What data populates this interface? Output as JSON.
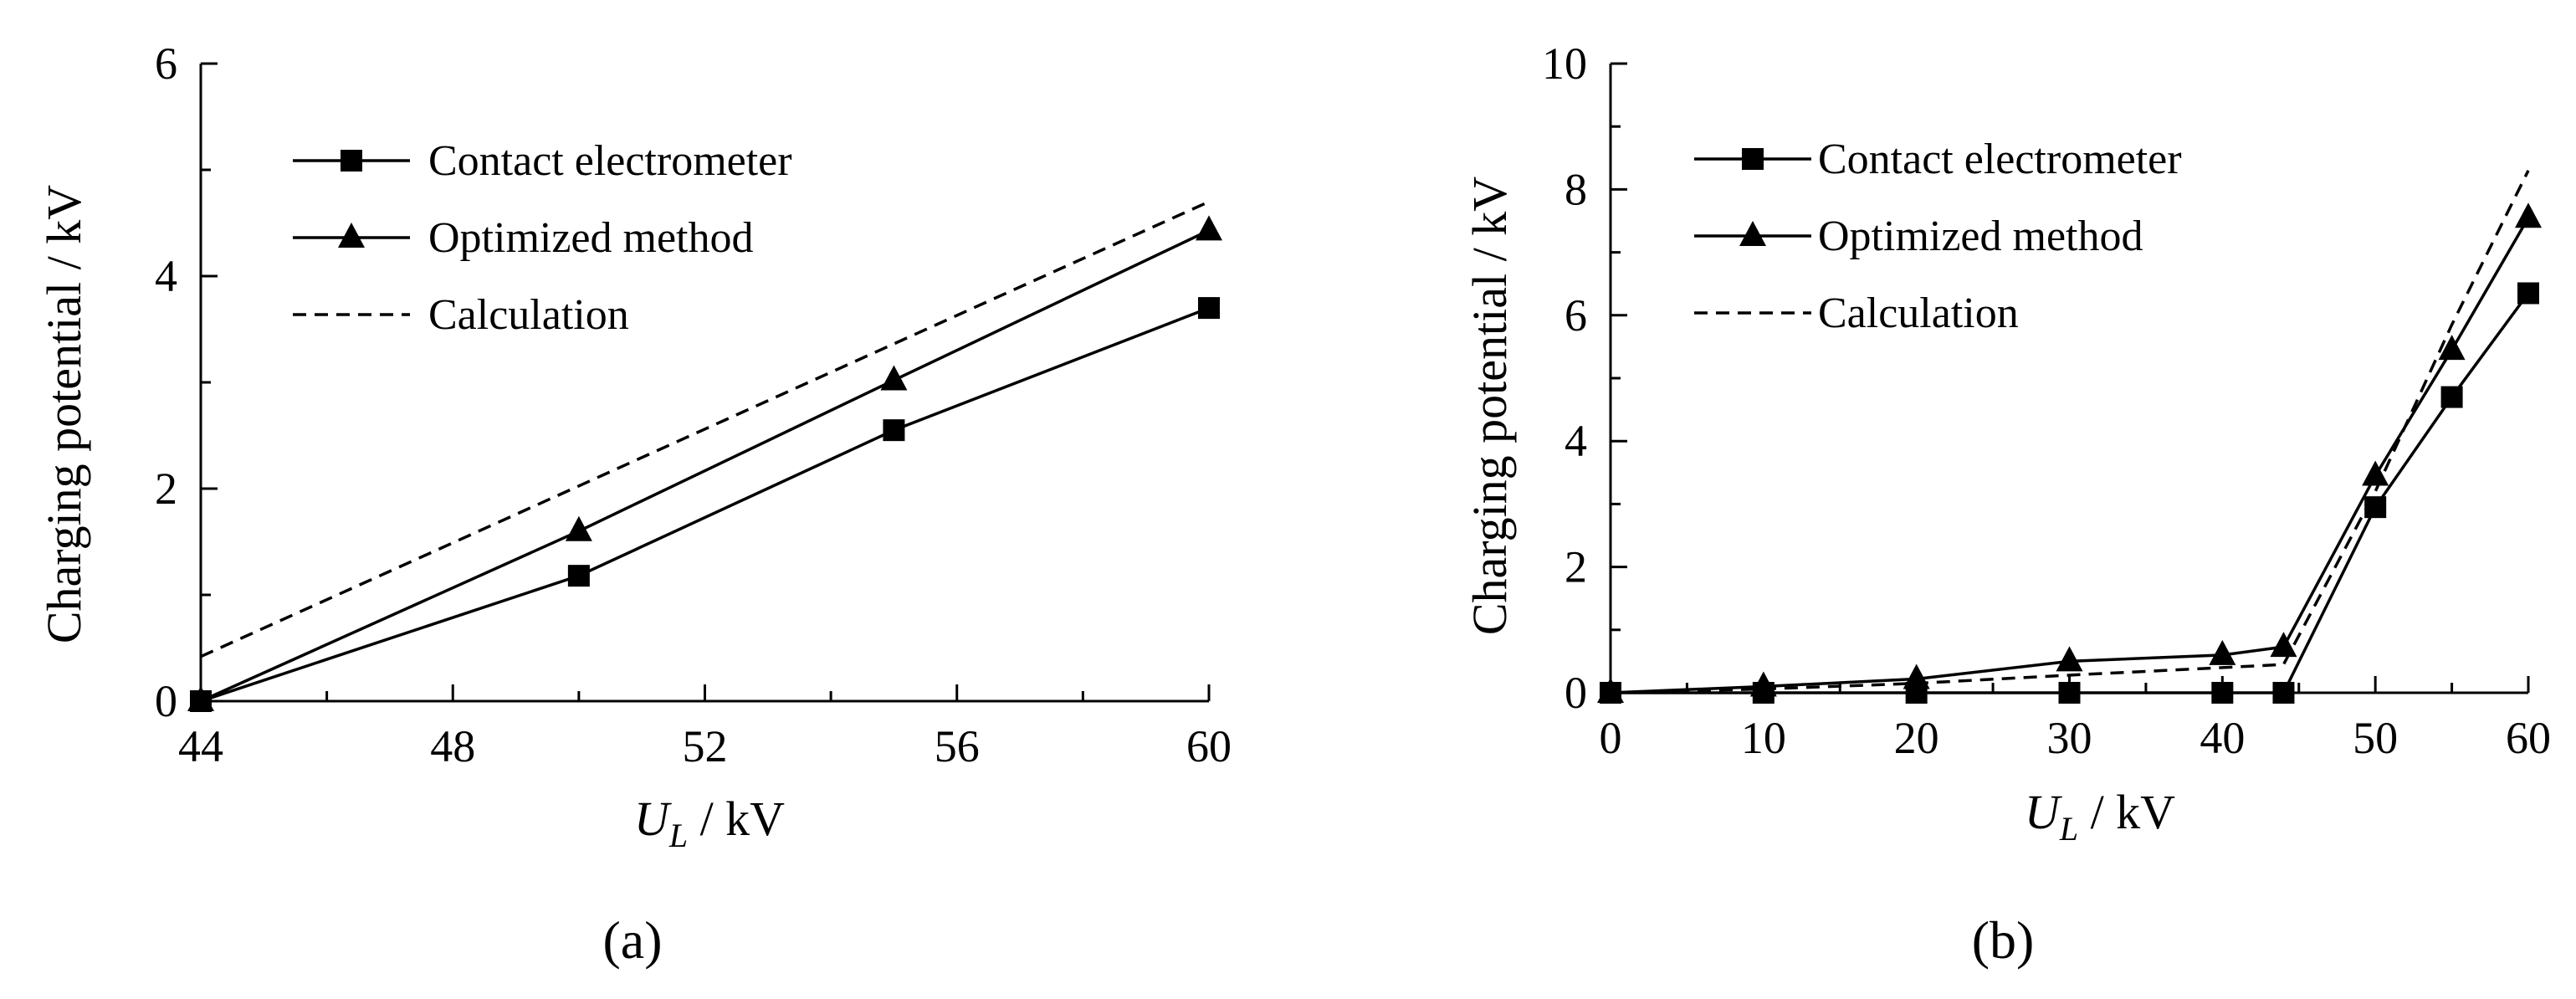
{
  "chart_data": [
    {
      "id": "a",
      "type": "line",
      "panel_label": "(a)",
      "ylabel": "Charging potential / kV",
      "xlabel_main": "U",
      "xlabel_sub": "L",
      "xlabel_unit": " / kV",
      "xlim": [
        44,
        60
      ],
      "ylim": [
        0,
        6
      ],
      "xticks": [
        44,
        48,
        52,
        56,
        60
      ],
      "yticks": [
        0,
        2,
        4,
        6
      ],
      "x_minor_step": 2,
      "y_minor_step": 1,
      "legend_position": "top-left",
      "series": [
        {
          "name": "Contact electrometer",
          "marker": "square",
          "dash": "solid",
          "x": [
            44,
            50,
            55,
            60
          ],
          "y": [
            0,
            1.18,
            2.55,
            3.7
          ]
        },
        {
          "name": "Optimized method",
          "marker": "triangle",
          "dash": "solid",
          "x": [
            44,
            50,
            55,
            60
          ],
          "y": [
            0,
            1.6,
            3.02,
            4.43
          ]
        },
        {
          "name": "Calculation",
          "marker": "none",
          "dash": "dashed",
          "x": [
            44,
            60
          ],
          "y": [
            0.42,
            4.7
          ]
        }
      ]
    },
    {
      "id": "b",
      "type": "line",
      "panel_label": "(b)",
      "ylabel": "Charging potential / kV",
      "xlabel_main": "U",
      "xlabel_sub": "L",
      "xlabel_unit": " / kV",
      "xlim": [
        0,
        60
      ],
      "ylim": [
        0,
        10
      ],
      "xticks": [
        0,
        10,
        20,
        30,
        40,
        50,
        60
      ],
      "yticks": [
        0,
        2,
        4,
        6,
        8,
        10
      ],
      "x_minor_step": 5,
      "y_minor_step": 1,
      "legend_position": "top-left",
      "series": [
        {
          "name": "Contact electrometer",
          "marker": "square",
          "dash": "solid",
          "x": [
            0,
            10,
            20,
            30,
            40,
            44,
            50,
            55,
            60
          ],
          "y": [
            0,
            0,
            0,
            0,
            0,
            0,
            2.95,
            4.7,
            6.35
          ]
        },
        {
          "name": "Optimized method",
          "marker": "triangle",
          "dash": "solid",
          "x": [
            0,
            10,
            20,
            30,
            40,
            44,
            50,
            55,
            60
          ],
          "y": [
            0,
            0.1,
            0.22,
            0.5,
            0.6,
            0.73,
            3.45,
            5.45,
            7.55
          ]
        },
        {
          "name": "Calculation",
          "marker": "none",
          "dash": "dashed",
          "x": [
            0,
            10,
            20,
            30,
            40,
            44,
            50,
            55,
            60
          ],
          "y": [
            0,
            0.06,
            0.15,
            0.28,
            0.4,
            0.45,
            3.2,
            5.85,
            8.3
          ]
        }
      ]
    }
  ]
}
